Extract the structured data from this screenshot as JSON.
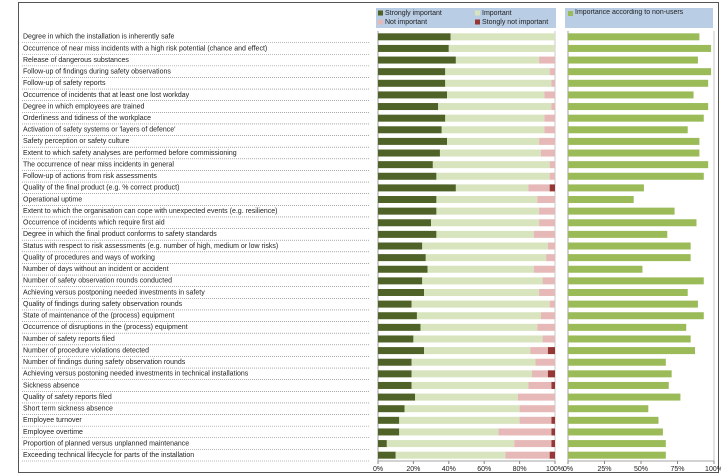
{
  "chart_data": [
    {
      "type": "stacked-bar-horizontal",
      "categories": [
        "Degree in which the installation is inherently safe",
        "Occurrence of near miss incidents with a high risk potential (chance and effect)",
        "Release of dangerous substances",
        "Follow-up of findings during safety observations",
        "Follow-up of safety reports",
        "Occurrence of incidents that at least one lost workday",
        "Degree in which employees are trained",
        "Orderliness and tidiness of the workplace",
        "Activation of safety systems or 'layers of defence'",
        "Safety perception or safety culture",
        "Extent to which safety analyses are performed before commissioning",
        "The occurrence of near miss incidents in general",
        "Follow-up of actions from risk assessments",
        "Quality of the final product (e.g. % correct product)",
        "Operational uptime",
        "Extent to which the organisation can cope with unexpected events (e.g. resilience)",
        "Occurrence of incidents which require first aid",
        "Degree in which the final product conforms to safety standards",
        "Status with respect to risk assessments (e.g. number of high, medium or low risks)",
        "Quality of procedures and ways of working",
        "Number of days without an incident or accident",
        "Number of safety observation rounds conducted",
        "Achieving versus postponing needed investments in safety",
        "Quality of findings during safety observation rounds",
        "State of maintenance of the (process) equipment",
        "Occurrence of disruptions in the (process) equipment",
        "Number of safety reports filed",
        "Number of procedure violations detected",
        "Number of findings during safety observation rounds",
        "Achieving versus postoning needed investments in technical installations",
        "Sickness absence",
        "Quality of safety reports filed",
        "Short term sickness absence",
        "Employee turnover",
        "Employee overtime",
        "Proportion of planned versus unplanned maintenance",
        "Exceeding technical lifecycle for parts of the installation"
      ],
      "series": [
        {
          "name": "Strongly important",
          "color": "#4f6228",
          "values": [
            41,
            40,
            44,
            38,
            38,
            39,
            34,
            38,
            36,
            39,
            35,
            31,
            33,
            44,
            33,
            33,
            30,
            33,
            25,
            27,
            28,
            25,
            26,
            19,
            22,
            24,
            20,
            26,
            19,
            19,
            19,
            21,
            15,
            12,
            12,
            5,
            10
          ]
        },
        {
          "name": "Important",
          "color": "#d7e4bd",
          "values": [
            59,
            60,
            47,
            59,
            60,
            55,
            64,
            56,
            58,
            52,
            57,
            66,
            64,
            41,
            57,
            58,
            61,
            55,
            71,
            68,
            60,
            68,
            65,
            78,
            70,
            66,
            73,
            60,
            70,
            68,
            66,
            58,
            65,
            68,
            56,
            72,
            62
          ]
        },
        {
          "name": "Not important",
          "color": "#e6b9b8",
          "values": [
            0,
            0,
            9,
            3,
            2,
            6,
            2,
            6,
            6,
            9,
            8,
            3,
            3,
            12,
            10,
            9,
            9,
            12,
            4,
            5,
            12,
            7,
            9,
            3,
            8,
            10,
            7,
            10,
            11,
            9,
            13,
            21,
            20,
            18,
            30,
            21,
            25
          ]
        },
        {
          "name": "Stongly not important",
          "color": "#953735",
          "values": [
            0,
            0,
            0,
            0,
            0,
            0,
            0,
            0,
            0,
            0,
            0,
            0,
            0,
            3,
            0,
            0,
            0,
            0,
            0,
            0,
            0,
            0,
            0,
            0,
            0,
            0,
            0,
            4,
            0,
            4,
            2,
            0,
            0,
            2,
            2,
            2,
            3
          ]
        }
      ],
      "xlim": [
        0,
        100
      ],
      "xticks": [
        {
          "value": 0,
          "label": "0%"
        },
        {
          "value": 20,
          "label": "20%"
        },
        {
          "value": 40,
          "label": "40%"
        },
        {
          "value": 60,
          "label": "60%"
        },
        {
          "value": 80,
          "label": "80%"
        },
        {
          "value": 100,
          "label": "100%"
        }
      ]
    },
    {
      "type": "bar-horizontal",
      "series": [
        {
          "name": "Importance according to non-users",
          "color": "#9bbb59",
          "values": [
            90,
            98,
            89,
            98,
            96,
            86,
            96,
            93,
            82,
            90,
            90,
            96,
            93,
            52,
            45,
            73,
            88,
            68,
            84,
            84,
            51,
            93,
            82,
            89,
            93,
            81,
            84,
            87,
            67,
            71,
            69,
            77,
            55,
            62,
            65,
            67,
            67
          ]
        }
      ],
      "xlim": [
        0,
        100
      ],
      "xticks": [
        {
          "value": 0,
          "label": "0%"
        },
        {
          "value": 25,
          "label": "25%"
        },
        {
          "value": 50,
          "label": "50%"
        },
        {
          "value": 75,
          "label": "75%"
        },
        {
          "value": 100,
          "label": "100%"
        }
      ]
    }
  ]
}
